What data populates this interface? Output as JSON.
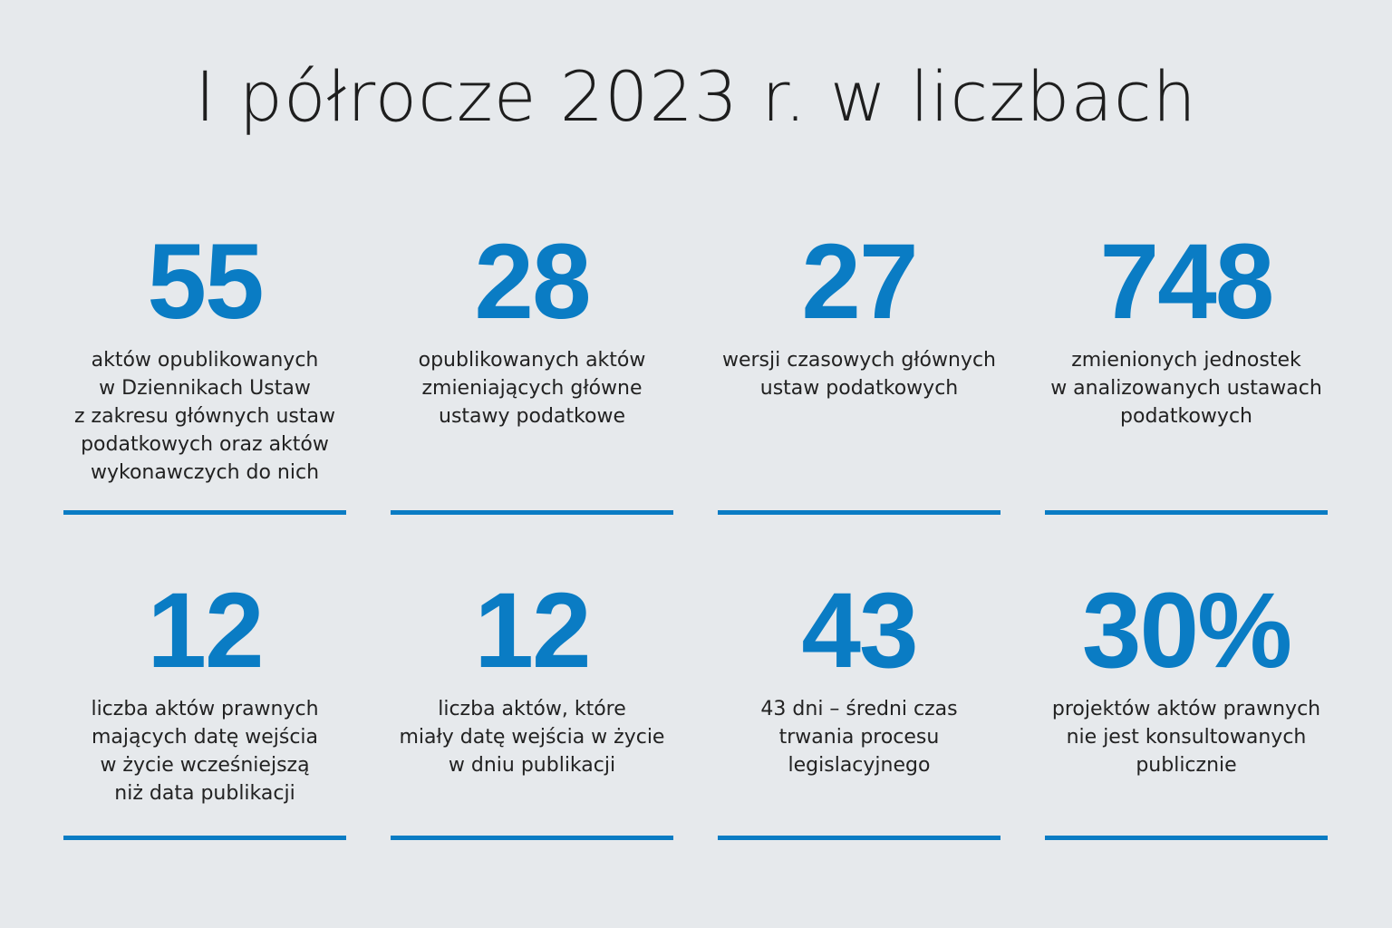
{
  "title": "I półrocze 2023 r. w liczbach",
  "accent_color": "#0a7cc4",
  "background_color": "#e6e9ec",
  "stats": [
    {
      "value": "55",
      "description": "aktów opublikowanych\nw Dziennikach Ustaw\nz zakresu głównych ustaw\npodatkowych oraz aktów\nwykonawczych do nich"
    },
    {
      "value": "28",
      "description": "opublikowanych aktów\nzmieniających główne\nustawy podatkowe"
    },
    {
      "value": "27",
      "description": "wersji czasowych głównych\nustaw podatkowych"
    },
    {
      "value": "748",
      "description": "zmienionych jednostek\nw analizowanych ustawach\npodatkowych"
    },
    {
      "value": "12",
      "description": "liczba aktów prawnych\nmających datę wejścia\nw życie wcześniejszą\nniż data publikacji"
    },
    {
      "value": "12",
      "description": "liczba aktów, które\nmiały datę wejścia w życie\nw dniu publikacji"
    },
    {
      "value": "43",
      "description": "43 dni – średni czas\ntrwania procesu\nlegislacyjnego"
    },
    {
      "value": "30%",
      "description": "projektów aktów prawnych\nnie jest konsultowanych\npublicznie"
    }
  ]
}
